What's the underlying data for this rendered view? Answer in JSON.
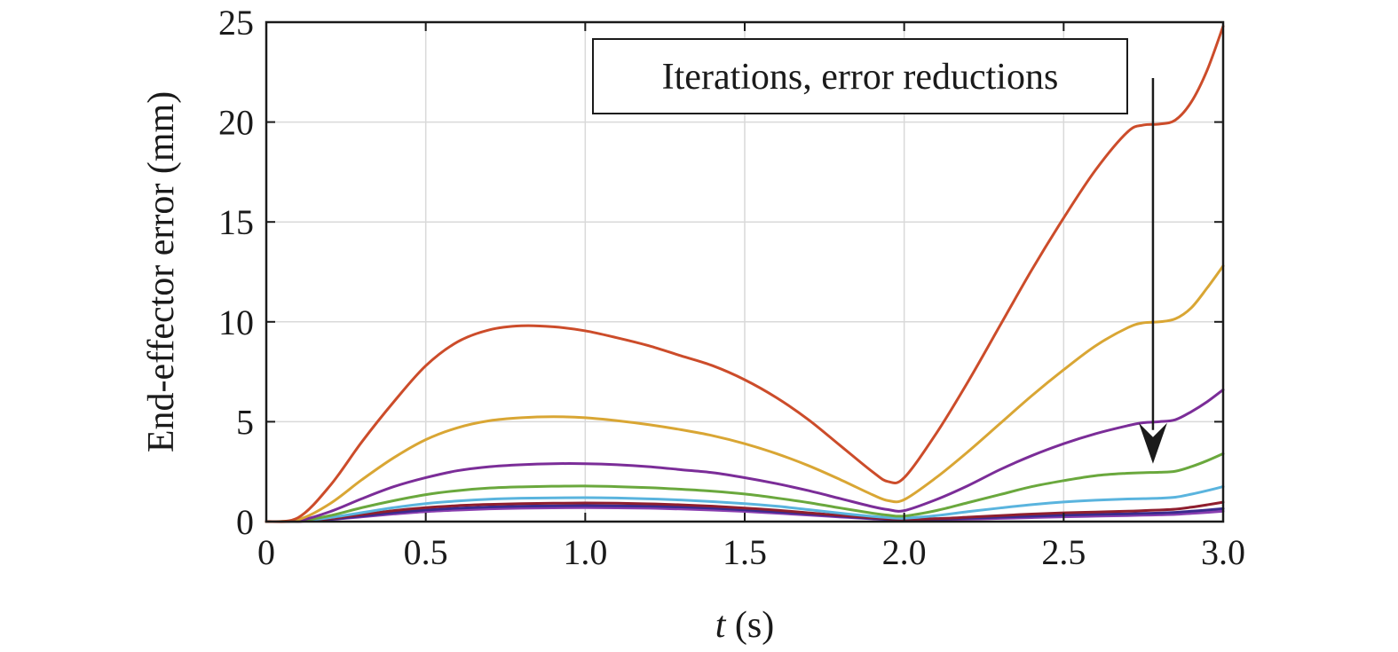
{
  "chart_data": {
    "type": "line",
    "title": "",
    "xlabel_italic": "t",
    "xlabel_rest": " (s)",
    "ylabel": "End-effector error (mm)",
    "xlim": [
      0,
      3.0
    ],
    "ylim": [
      0,
      25
    ],
    "grid": true,
    "x_ticks": [
      0,
      0.5,
      1.0,
      1.5,
      2.0,
      2.5,
      3.0
    ],
    "x_tick_labels": [
      "0",
      "0.5",
      "1.0",
      "1.5",
      "2.0",
      "2.5",
      "3.0"
    ],
    "y_ticks": [
      0,
      5,
      10,
      15,
      20,
      25
    ],
    "y_tick_labels": [
      "0",
      "5",
      "10",
      "15",
      "20",
      "25"
    ],
    "x": [
      0,
      0.1,
      0.2,
      0.3,
      0.4,
      0.5,
      0.6,
      0.7,
      0.8,
      0.9,
      1.0,
      1.1,
      1.2,
      1.3,
      1.4,
      1.5,
      1.6,
      1.7,
      1.8,
      1.9,
      1.95,
      2.0,
      2.1,
      2.2,
      2.3,
      2.4,
      2.5,
      2.6,
      2.7,
      2.75,
      2.8,
      2.85,
      2.9,
      2.95,
      3.0
    ],
    "series": [
      {
        "color": "#cc4c2a",
        "values": [
          0,
          0.2,
          1.8,
          4.0,
          6.0,
          7.8,
          9.0,
          9.6,
          9.8,
          9.75,
          9.55,
          9.2,
          8.8,
          8.3,
          7.8,
          7.1,
          6.2,
          5.1,
          3.8,
          2.5,
          2.0,
          2.2,
          4.4,
          7.0,
          9.8,
          12.6,
          15.2,
          17.6,
          19.5,
          19.85,
          19.9,
          20.1,
          21.0,
          22.6,
          24.8
        ]
      },
      {
        "color": "#d9a634",
        "values": [
          0,
          0.1,
          0.9,
          2.1,
          3.2,
          4.1,
          4.7,
          5.05,
          5.2,
          5.25,
          5.2,
          5.05,
          4.85,
          4.6,
          4.3,
          3.9,
          3.4,
          2.8,
          2.1,
          1.35,
          1.05,
          1.1,
          2.2,
          3.5,
          4.9,
          6.3,
          7.6,
          8.8,
          9.7,
          9.95,
          10.0,
          10.15,
          10.7,
          11.7,
          12.8
        ]
      },
      {
        "color": "#7b2d98",
        "values": [
          0,
          0.05,
          0.5,
          1.15,
          1.75,
          2.2,
          2.55,
          2.75,
          2.85,
          2.9,
          2.9,
          2.85,
          2.75,
          2.6,
          2.45,
          2.2,
          1.9,
          1.55,
          1.15,
          0.75,
          0.6,
          0.55,
          1.1,
          1.8,
          2.6,
          3.3,
          3.9,
          4.4,
          4.8,
          4.95,
          5.0,
          5.1,
          5.5,
          6.0,
          6.6
        ]
      },
      {
        "color": "#6aa83d",
        "values": [
          0,
          0.03,
          0.3,
          0.7,
          1.05,
          1.35,
          1.55,
          1.68,
          1.74,
          1.77,
          1.78,
          1.75,
          1.7,
          1.62,
          1.52,
          1.38,
          1.18,
          0.95,
          0.68,
          0.42,
          0.32,
          0.28,
          0.55,
          0.95,
          1.35,
          1.75,
          2.05,
          2.3,
          2.42,
          2.45,
          2.47,
          2.52,
          2.75,
          3.05,
          3.4
        ]
      },
      {
        "color": "#5ab4de",
        "values": [
          0,
          0.02,
          0.2,
          0.45,
          0.7,
          0.9,
          1.03,
          1.12,
          1.17,
          1.19,
          1.2,
          1.18,
          1.14,
          1.08,
          1.0,
          0.9,
          0.77,
          0.6,
          0.42,
          0.26,
          0.2,
          0.17,
          0.3,
          0.5,
          0.68,
          0.85,
          0.98,
          1.07,
          1.13,
          1.15,
          1.17,
          1.22,
          1.37,
          1.55,
          1.75
        ]
      },
      {
        "color": "#8f1e2e",
        "values": [
          0,
          0.01,
          0.15,
          0.35,
          0.55,
          0.7,
          0.8,
          0.86,
          0.9,
          0.92,
          0.93,
          0.92,
          0.89,
          0.84,
          0.77,
          0.68,
          0.57,
          0.44,
          0.31,
          0.19,
          0.14,
          0.12,
          0.15,
          0.22,
          0.3,
          0.38,
          0.44,
          0.48,
          0.52,
          0.55,
          0.58,
          0.62,
          0.72,
          0.84,
          0.97
        ]
      },
      {
        "color": "#3a2a8f",
        "values": [
          0,
          0.01,
          0.12,
          0.28,
          0.45,
          0.58,
          0.67,
          0.73,
          0.77,
          0.79,
          0.8,
          0.79,
          0.77,
          0.73,
          0.67,
          0.59,
          0.49,
          0.38,
          0.27,
          0.16,
          0.12,
          0.1,
          0.12,
          0.17,
          0.22,
          0.27,
          0.32,
          0.36,
          0.39,
          0.41,
          0.43,
          0.46,
          0.52,
          0.58,
          0.65
        ]
      },
      {
        "color": "#8a3fb0",
        "values": [
          0,
          0.01,
          0.1,
          0.24,
          0.38,
          0.5,
          0.58,
          0.64,
          0.67,
          0.69,
          0.7,
          0.69,
          0.67,
          0.63,
          0.58,
          0.51,
          0.42,
          0.33,
          0.23,
          0.14,
          0.1,
          0.08,
          0.09,
          0.12,
          0.16,
          0.2,
          0.24,
          0.27,
          0.3,
          0.32,
          0.34,
          0.36,
          0.41,
          0.46,
          0.52
        ]
      }
    ],
    "annotation": {
      "text": "Iterations, error reductions",
      "arrow_x": 2.78,
      "arrow_from_y": 22.2,
      "arrow_to_y": 2.9
    }
  }
}
